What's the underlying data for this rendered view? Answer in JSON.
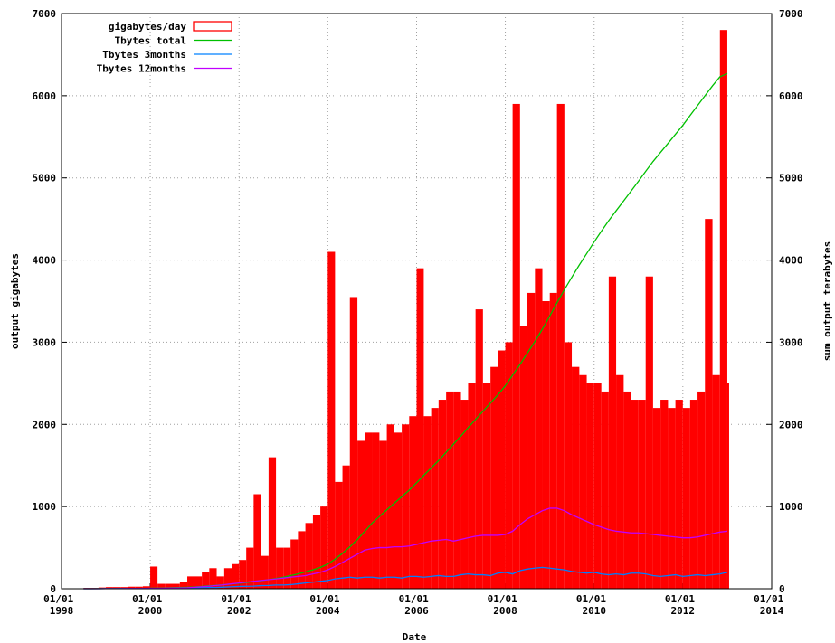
{
  "chart_data": {
    "type": "bar",
    "x_label": "Date",
    "y_label": "output gigabytes",
    "y2_label": "sum output terabytes",
    "x": [
      "1998-07-01",
      "1998-09-01",
      "1998-11-01",
      "1999-01-01",
      "1999-03-01",
      "1999-05-01",
      "1999-07-01",
      "1999-09-01",
      "1999-11-01",
      "2000-01-01",
      "2000-03-01",
      "2000-05-01",
      "2000-07-01",
      "2000-09-01",
      "2000-11-01",
      "2001-01-01",
      "2001-03-01",
      "2001-05-01",
      "2001-07-01",
      "2001-09-01",
      "2001-11-01",
      "2002-01-01",
      "2002-03-01",
      "2002-05-01",
      "2002-07-01",
      "2002-09-01",
      "2002-11-01",
      "2003-01-01",
      "2003-03-01",
      "2003-05-01",
      "2003-07-01",
      "2003-09-01",
      "2003-11-01",
      "2004-01-01",
      "2004-03-01",
      "2004-05-01",
      "2004-07-01",
      "2004-09-01",
      "2004-11-01",
      "2005-01-01",
      "2005-03-01",
      "2005-05-01",
      "2005-07-01",
      "2005-09-01",
      "2005-11-01",
      "2006-01-01",
      "2006-03-01",
      "2006-05-01",
      "2006-07-01",
      "2006-09-01",
      "2006-11-01",
      "2007-01-01",
      "2007-03-01",
      "2007-05-01",
      "2007-07-01",
      "2007-09-01",
      "2007-11-01",
      "2008-01-01",
      "2008-03-01",
      "2008-05-01",
      "2008-07-01",
      "2008-09-01",
      "2008-11-01",
      "2009-01-01",
      "2009-03-01",
      "2009-05-01",
      "2009-07-01",
      "2009-09-01",
      "2009-11-01",
      "2010-01-01",
      "2010-03-01",
      "2010-05-01",
      "2010-07-01",
      "2010-09-01",
      "2010-11-01",
      "2011-01-01",
      "2011-03-01",
      "2011-05-01",
      "2011-07-01",
      "2011-09-01",
      "2011-11-01",
      "2012-01-01",
      "2012-03-01",
      "2012-05-01",
      "2012-07-01",
      "2012-09-01",
      "2012-11-01",
      "2013-01-01"
    ],
    "series": [
      {
        "name": "gigabytes/day",
        "color": "#ff0000",
        "kind": "bar",
        "values": [
          10,
          10,
          15,
          20,
          20,
          20,
          25,
          25,
          30,
          270,
          60,
          60,
          60,
          80,
          150,
          150,
          200,
          250,
          150,
          250,
          300,
          350,
          500,
          1150,
          400,
          1600,
          500,
          500,
          600,
          700,
          800,
          900,
          1000,
          4100,
          1300,
          1500,
          3550,
          1800,
          1900,
          1900,
          1800,
          2000,
          1900,
          2000,
          2100,
          3900,
          2100,
          2200,
          2300,
          2400,
          2400,
          2300,
          2500,
          3400,
          2500,
          2700,
          2900,
          3000,
          5900,
          3200,
          3600,
          3900,
          3500,
          3600,
          5900,
          3000,
          2700,
          2600,
          2500,
          2500,
          2400,
          3800,
          2600,
          2400,
          2300,
          2300,
          3800,
          2200,
          2300,
          2200,
          2300,
          2200,
          2300,
          2400,
          4500,
          2600,
          6800,
          2500
        ]
      },
      {
        "name": "Tbytes total",
        "color": "#00c000",
        "kind": "line",
        "axis": "y2",
        "values": [
          0,
          0,
          1,
          1,
          2,
          2,
          3,
          3,
          4,
          5,
          8,
          10,
          12,
          15,
          18,
          22,
          28,
          35,
          42,
          50,
          58,
          66,
          76,
          86,
          98,
          110,
          125,
          140,
          160,
          180,
          205,
          230,
          260,
          300,
          360,
          430,
          510,
          600,
          700,
          800,
          880,
          960,
          1040,
          1120,
          1200,
          1290,
          1380,
          1470,
          1560,
          1660,
          1760,
          1860,
          1960,
          2060,
          2160,
          2260,
          2360,
          2470,
          2600,
          2730,
          2870,
          3010,
          3160,
          3320,
          3480,
          3640,
          3790,
          3940,
          4080,
          4220,
          4350,
          4480,
          4600,
          4720,
          4840,
          4960,
          5080,
          5200,
          5310,
          5420,
          5530,
          5640,
          5760,
          5880,
          6000,
          6120,
          6230,
          6270
        ]
      },
      {
        "name": "Tbytes 3months",
        "color": "#0080ff",
        "kind": "line",
        "axis": "y2",
        "values": [
          0,
          0,
          0,
          1,
          1,
          2,
          2,
          2,
          3,
          5,
          4,
          4,
          5,
          6,
          8,
          12,
          14,
          15,
          16,
          20,
          25,
          28,
          30,
          32,
          38,
          40,
          45,
          45,
          50,
          60,
          70,
          80,
          90,
          100,
          120,
          130,
          140,
          130,
          140,
          140,
          130,
          140,
          140,
          130,
          150,
          150,
          140,
          150,
          160,
          150,
          150,
          170,
          180,
          170,
          170,
          160,
          190,
          200,
          180,
          220,
          240,
          250,
          260,
          250,
          240,
          230,
          210,
          200,
          190,
          200,
          180,
          170,
          180,
          170,
          190,
          190,
          180,
          160,
          150,
          160,
          170,
          150,
          160,
          170,
          160,
          170,
          180,
          200
        ]
      },
      {
        "name": "Tbytes 12months",
        "color": "#c000ff",
        "kind": "line",
        "axis": "y2",
        "values": [
          0,
          0,
          0,
          1,
          1,
          1,
          2,
          2,
          2,
          3,
          5,
          6,
          8,
          10,
          12,
          18,
          25,
          32,
          40,
          50,
          60,
          70,
          80,
          90,
          100,
          110,
          120,
          130,
          140,
          150,
          160,
          180,
          200,
          230,
          270,
          320,
          370,
          420,
          470,
          490,
          500,
          500,
          510,
          510,
          520,
          540,
          560,
          580,
          590,
          600,
          580,
          600,
          620,
          640,
          650,
          650,
          650,
          660,
          700,
          780,
          850,
          900,
          950,
          980,
          980,
          950,
          900,
          860,
          820,
          780,
          750,
          720,
          700,
          690,
          680,
          680,
          670,
          660,
          650,
          640,
          630,
          620,
          620,
          630,
          650,
          670,
          690,
          700
        ]
      }
    ],
    "xlim": [
      "1998-01-01",
      "2014-01-01"
    ],
    "xticks": [
      {
        "value": "1998-01-01",
        "label": "01/01 1998"
      },
      {
        "value": "2000-01-01",
        "label": "01/01 2000"
      },
      {
        "value": "2002-01-01",
        "label": "01/01 2002"
      },
      {
        "value": "2004-01-01",
        "label": "01/01 2004"
      },
      {
        "value": "2006-01-01",
        "label": "01/01 2006"
      },
      {
        "value": "2008-01-01",
        "label": "01/01 2008"
      },
      {
        "value": "2010-01-01",
        "label": "01/01 2010"
      },
      {
        "value": "2012-01-01",
        "label": "01/01 2012"
      },
      {
        "value": "2014-01-01",
        "label": "01/01 2014"
      }
    ],
    "ylim": [
      0,
      7000
    ],
    "yticks": [
      0,
      1000,
      2000,
      3000,
      4000,
      5000,
      6000,
      7000
    ],
    "y2lim": [
      0,
      7000
    ],
    "y2ticks": [
      0,
      1000,
      2000,
      3000,
      4000,
      5000,
      6000,
      7000
    ],
    "grid": true,
    "legend": "top-left"
  }
}
